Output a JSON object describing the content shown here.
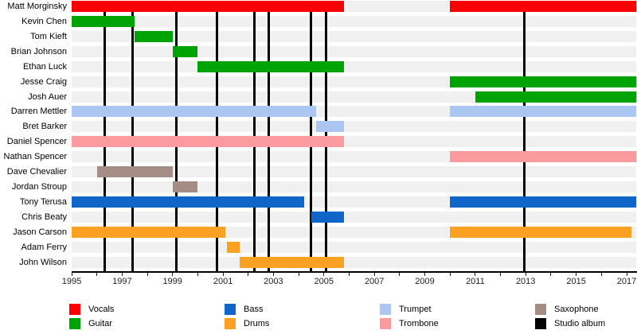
{
  "chart_data": {
    "type": "timeline",
    "title": "",
    "description": "Band members timeline with studio album release markers",
    "x_axis": {
      "min": 1995,
      "max": 2017.4,
      "minor_tick_interval": 1,
      "label_years": [
        1995,
        1997,
        1999,
        2001,
        2003,
        2005,
        2007,
        2009,
        2011,
        2013,
        2015,
        2017
      ]
    },
    "roles": {
      "Vocals": "#fa0000",
      "Guitar": "#00a305",
      "Bass": "#1065c9",
      "Drums": "#faa022",
      "Trumpet": "#abc7f1",
      "Trombone": "#fb9ba0",
      "Saxophone": "#a58c84"
    },
    "album_marker": {
      "label": "Studio album",
      "color": "#000000",
      "years": [
        1996.3,
        1997.42,
        1999.16,
        2000.77,
        2002.24,
        2002.81,
        2004.47,
        2005.07,
        2012.93
      ]
    },
    "members": [
      {
        "name": "Matt Morginsky",
        "role": "Vocals",
        "segments": [
          [
            1995,
            2005.8
          ],
          [
            2010,
            2017.38
          ]
        ]
      },
      {
        "name": "Kevin Chen",
        "role": "Guitar",
        "segments": [
          [
            1995,
            1997.5
          ]
        ]
      },
      {
        "name": "Tom Kieft",
        "role": "Guitar",
        "segments": [
          [
            1997.5,
            1999
          ]
        ]
      },
      {
        "name": "Brian Johnson",
        "role": "Guitar",
        "segments": [
          [
            1999,
            2000
          ]
        ]
      },
      {
        "name": "Ethan Luck",
        "role": "Guitar",
        "segments": [
          [
            2000,
            2005.8
          ]
        ]
      },
      {
        "name": "Jesse Craig",
        "role": "Guitar",
        "segments": [
          [
            2010,
            2017.38
          ]
        ]
      },
      {
        "name": "Josh Auer",
        "role": "Guitar",
        "segments": [
          [
            2011,
            2017.38
          ]
        ]
      },
      {
        "name": "Darren Mettler",
        "role": "Trumpet",
        "segments": [
          [
            1995,
            2004.7
          ],
          [
            2010,
            2017.38
          ]
        ]
      },
      {
        "name": "Bret Barker",
        "role": "Trumpet",
        "segments": [
          [
            2004.7,
            2005.8
          ]
        ]
      },
      {
        "name": "Daniel Spencer",
        "role": "Trombone",
        "segments": [
          [
            1995,
            2005.8
          ]
        ]
      },
      {
        "name": "Nathan Spencer",
        "role": "Trombone",
        "segments": [
          [
            2010,
            2017.38
          ]
        ]
      },
      {
        "name": "Dave Chevalier",
        "role": "Saxophone",
        "segments": [
          [
            1996,
            1999
          ]
        ]
      },
      {
        "name": "Jordan Stroup",
        "role": "Saxophone",
        "segments": [
          [
            1999,
            2000
          ]
        ]
      },
      {
        "name": "Tony Terusa",
        "role": "Bass",
        "segments": [
          [
            1995,
            2004.2
          ],
          [
            2010,
            2017.38
          ]
        ]
      },
      {
        "name": "Chris Beaty",
        "role": "Bass",
        "segments": [
          [
            2004.5,
            2005.8
          ]
        ]
      },
      {
        "name": "Jason Carson",
        "role": "Drums",
        "segments": [
          [
            1995,
            2001.1
          ],
          [
            2010,
            2017.18
          ]
        ]
      },
      {
        "name": "Adam Ferry",
        "role": "Drums",
        "segments": [
          [
            2001.15,
            2001.65
          ]
        ]
      },
      {
        "name": "John Wilson",
        "role": "Drums",
        "segments": [
          [
            2001.65,
            2005.8
          ]
        ]
      }
    ],
    "legend": [
      {
        "label": "Vocals",
        "color": "#fa0000"
      },
      {
        "label": "Guitar",
        "color": "#00a305"
      },
      {
        "label": "Bass",
        "color": "#1065c9"
      },
      {
        "label": "Drums",
        "color": "#faa022"
      },
      {
        "label": "Trumpet",
        "color": "#abc7f1"
      },
      {
        "label": "Trombone",
        "color": "#fb9ba0"
      },
      {
        "label": "Saxophone",
        "color": "#a58c84"
      },
      {
        "label": "Studio album",
        "color": "#000000"
      }
    ],
    "legend_position": "bottom"
  }
}
